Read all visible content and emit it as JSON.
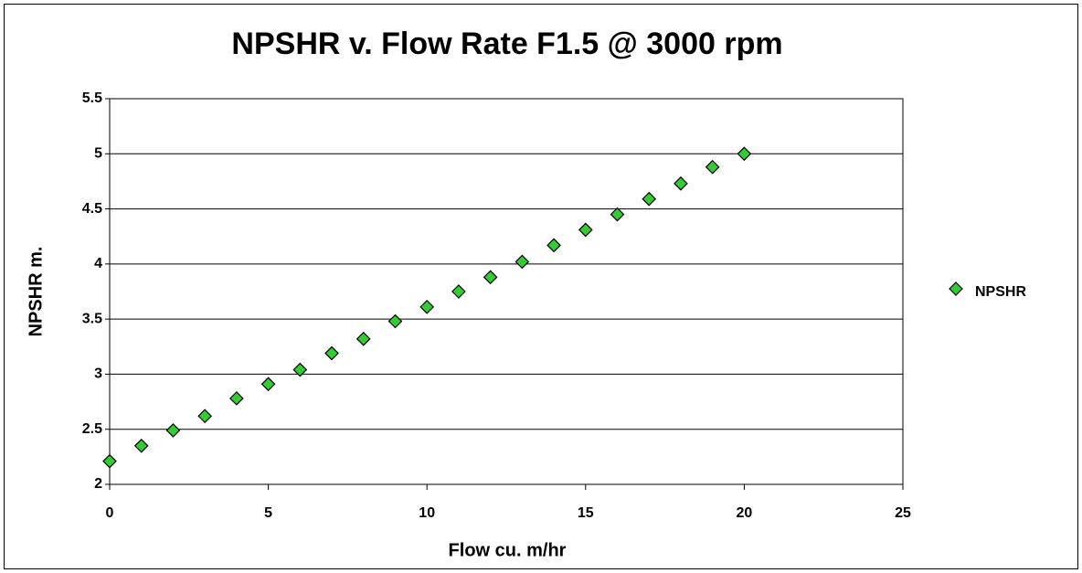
{
  "chart_data": {
    "type": "scatter",
    "title": "NPSHR v. Flow Rate F1.5 @ 3000 rpm",
    "xlabel": "Flow cu. m/hr",
    "ylabel": "NPSHR m.",
    "series": [
      {
        "name": "NPSHR",
        "color": "#33cc33",
        "x": [
          0,
          1,
          2,
          3,
          4,
          5,
          6,
          7,
          8,
          9,
          10,
          11,
          12,
          13,
          14,
          15,
          16,
          17,
          18,
          19,
          20
        ],
        "values": [
          2.21,
          2.35,
          2.49,
          2.62,
          2.78,
          2.91,
          3.04,
          3.19,
          3.32,
          3.48,
          3.61,
          3.75,
          3.88,
          4.02,
          4.17,
          4.31,
          4.45,
          4.59,
          4.73,
          4.88,
          5.0
        ]
      }
    ],
    "xlim": [
      0,
      25
    ],
    "xticks": [
      0,
      5,
      10,
      15,
      20,
      25
    ],
    "ylim": [
      2,
      5.5
    ],
    "yticks": [
      2,
      2.5,
      3,
      3.5,
      4,
      4.5,
      5,
      5.5
    ],
    "grid": true,
    "legend": "right"
  }
}
